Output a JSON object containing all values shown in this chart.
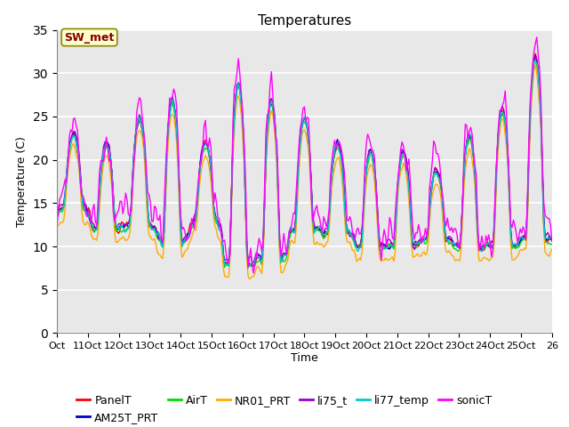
{
  "title": "Temperatures",
  "xlabel": "Time",
  "ylabel": "Temperature (C)",
  "annotation": "SW_met",
  "ylim": [
    0,
    35
  ],
  "yticks": [
    0,
    5,
    10,
    15,
    20,
    25,
    30,
    35
  ],
  "series_names": [
    "PanelT",
    "AM25T_PRT",
    "AirT",
    "NR01_PRT",
    "li75_t",
    "li77_temp",
    "sonicT"
  ],
  "series_colors": [
    "#ff0000",
    "#0000cc",
    "#00dd00",
    "#ffaa00",
    "#9900cc",
    "#00cccc",
    "#ff00ff"
  ],
  "line_width": 1.0,
  "fig_bg_color": "#ffffff",
  "plot_bg_color": "#e8e8e8",
  "annotation_bg": "#ffffcc",
  "annotation_border": "#888800",
  "annotation_text_color": "#880000",
  "legend_fontsize": 9,
  "title_fontsize": 11,
  "xtick_labels": [
    "Oct",
    "11Oct",
    "12Oct",
    "13Oct",
    "14Oct",
    "15Oct",
    "16Oct",
    "17Oct",
    "18Oct",
    "19Oct",
    "20Oct",
    "21Oct",
    "22Oct",
    "23Oct",
    "24Oct",
    "25Oct",
    "26"
  ]
}
